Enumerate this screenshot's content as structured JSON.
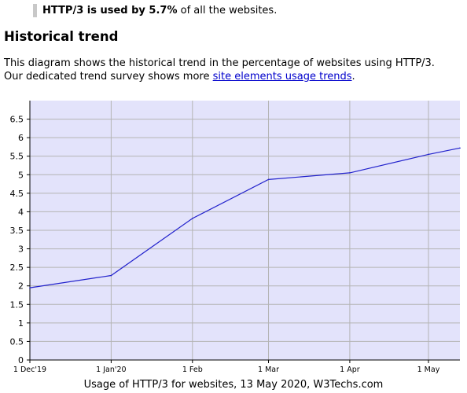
{
  "summary": {
    "bold_text": "HTTP/3 is used by 5.7%",
    "rest_text": " of all the websites."
  },
  "section": {
    "title": "Historical trend",
    "line1": "This diagram shows the historical trend in the percentage of websites using HTTP/3.",
    "line2_prefix": "Our dedicated trend survey shows more ",
    "link_text": "site elements usage trends",
    "line2_suffix": "."
  },
  "chart_data": {
    "type": "line",
    "title": "Usage of HTTP/3 for websites, 13 May 2020, W3Techs.com",
    "x_ticks": [
      {
        "label": "1 Dec'19",
        "day": 0
      },
      {
        "label": "1 Jan'20",
        "day": 31
      },
      {
        "label": "1 Feb",
        "day": 62
      },
      {
        "label": "1 Mar",
        "day": 91
      },
      {
        "label": "1 Apr",
        "day": 122
      },
      {
        "label": "1 May",
        "day": 152
      }
    ],
    "x_range": [
      0,
      164
    ],
    "ylim": [
      0,
      7
    ],
    "y_ticks": [
      0,
      0.5,
      1,
      1.5,
      2,
      2.5,
      3,
      3.5,
      4,
      4.5,
      5,
      5.5,
      6,
      6.5
    ],
    "grid": true,
    "colors": {
      "plot_bg": "#e3e3fb",
      "line": "#2222cc",
      "grid": "#b4b4b4"
    },
    "series": [
      {
        "points": [
          {
            "day": 0,
            "value": 1.95
          },
          {
            "day": 31,
            "value": 2.28
          },
          {
            "day": 62,
            "value": 3.82
          },
          {
            "day": 91,
            "value": 4.87
          },
          {
            "day": 122,
            "value": 5.05
          },
          {
            "day": 152,
            "value": 5.55
          },
          {
            "day": 164,
            "value": 5.72
          }
        ]
      }
    ]
  }
}
